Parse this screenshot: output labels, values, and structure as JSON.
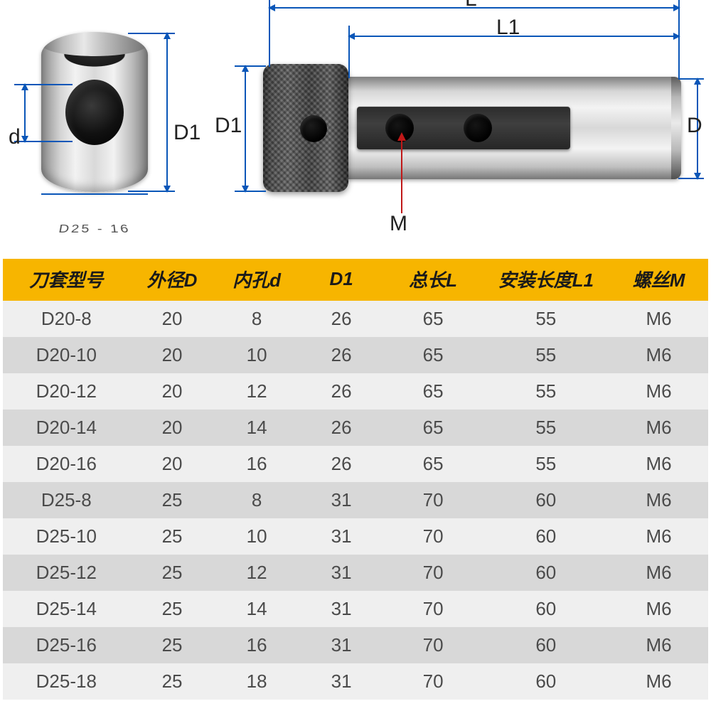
{
  "diagram": {
    "labels": {
      "d": "d",
      "D1_left": "D1",
      "D1_side": "D1",
      "D": "D",
      "L": "L",
      "L1": "L1",
      "M": "M"
    },
    "engraving": "D25 - 16",
    "line_color": "#0a56b8"
  },
  "table": {
    "header_bg": "#f7b500",
    "row_odd_bg": "#efefef",
    "row_even_bg": "#d8d8d8",
    "text_color": "#4b4b4b",
    "columns": [
      "刀套型号",
      "外径D",
      "内孔d",
      "D1",
      "总长L",
      "安装长度L1",
      "螺丝M"
    ],
    "col_widths_pct": [
      18,
      12,
      12,
      12,
      14,
      18,
      14
    ],
    "rows": [
      [
        "D20-8",
        "20",
        "8",
        "26",
        "65",
        "55",
        "M6"
      ],
      [
        "D20-10",
        "20",
        "10",
        "26",
        "65",
        "55",
        "M6"
      ],
      [
        "D20-12",
        "20",
        "12",
        "26",
        "65",
        "55",
        "M6"
      ],
      [
        "D20-14",
        "20",
        "14",
        "26",
        "65",
        "55",
        "M6"
      ],
      [
        "D20-16",
        "20",
        "16",
        "26",
        "65",
        "55",
        "M6"
      ],
      [
        "D25-8",
        "25",
        "8",
        "31",
        "70",
        "60",
        "M6"
      ],
      [
        "D25-10",
        "25",
        "10",
        "31",
        "70",
        "60",
        "M6"
      ],
      [
        "D25-12",
        "25",
        "12",
        "31",
        "70",
        "60",
        "M6"
      ],
      [
        "D25-14",
        "25",
        "14",
        "31",
        "70",
        "60",
        "M6"
      ],
      [
        "D25-16",
        "25",
        "16",
        "31",
        "70",
        "60",
        "M6"
      ],
      [
        "D25-18",
        "25",
        "18",
        "31",
        "70",
        "60",
        "M6"
      ]
    ]
  }
}
